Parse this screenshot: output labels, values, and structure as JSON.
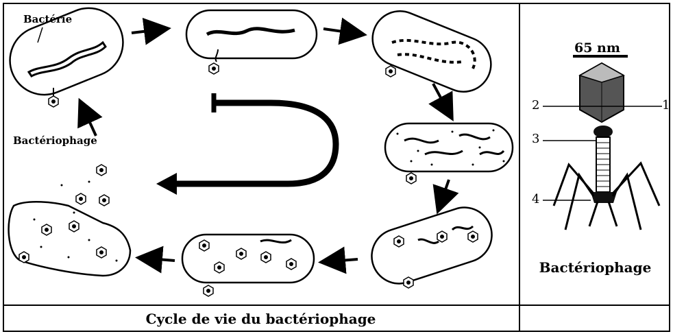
{
  "caption": "Cycle de vie du bactériophage",
  "left_labels": {
    "bacterie": "Bactérie",
    "bacteriophage": "Bactériophage"
  },
  "right_panel": {
    "title": "Bactériophage",
    "scale": "65 nm",
    "markers": [
      "1",
      "2",
      "3",
      "4"
    ]
  }
}
